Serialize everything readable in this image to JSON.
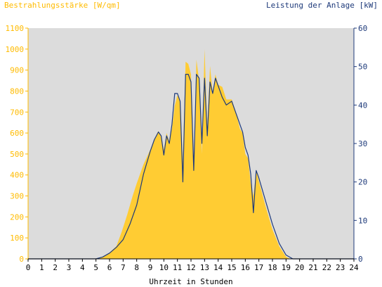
{
  "chart_data": {
    "type": "area",
    "left_axis_title": "Bestrahlungsstärke [W/qm]",
    "right_axis_title": "Leistung der Anlage [kW]",
    "xlabel": "Uhrzeit in Stunden",
    "xlim": [
      0,
      24
    ],
    "ylim_left": [
      0,
      1100
    ],
    "ylim_right": [
      0,
      60
    ],
    "x_ticks": [
      "0",
      "1",
      "2",
      "3",
      "4",
      "5",
      "6",
      "7",
      "8",
      "9",
      "10",
      "11",
      "12",
      "13",
      "14",
      "15",
      "16",
      "17",
      "18",
      "19",
      "20",
      "21",
      "22",
      "23",
      "24"
    ],
    "y_left_ticks": [
      "0",
      "100",
      "200",
      "300",
      "400",
      "500",
      "600",
      "700",
      "800",
      "900",
      "1000",
      "1100"
    ],
    "y_right_ticks": [
      "0",
      "10",
      "20",
      "30",
      "40",
      "50",
      "60"
    ],
    "grid": false,
    "colors": {
      "irradiance": "#ffcc33",
      "power": "#1e3a7a",
      "plot_bg": "#dcdcdc",
      "left_axis_text": "#ffbb00",
      "right_axis_text": "#1e3a7a"
    },
    "series": [
      {
        "name": "Bestrahlungsstärke",
        "axis": "left",
        "x": [
          5.2,
          5.5,
          6.0,
          6.5,
          6.9,
          7.3,
          7.7,
          8.0,
          8.5,
          9.0,
          9.3,
          9.6,
          9.8,
          10.0,
          10.2,
          10.4,
          10.6,
          10.8,
          11.0,
          11.2,
          11.4,
          11.6,
          11.8,
          12.0,
          12.2,
          12.4,
          12.6,
          12.8,
          13.0,
          13.2,
          13.4,
          13.6,
          13.8,
          14.0,
          14.3,
          14.6,
          15.0,
          15.3,
          15.6,
          15.8,
          16.0,
          16.2,
          16.4,
          16.6,
          16.8,
          17.0,
          17.5,
          18.0,
          18.5,
          19.0,
          19.3
        ],
        "values": [
          0,
          10,
          30,
          60,
          130,
          210,
          300,
          360,
          450,
          520,
          570,
          610,
          580,
          520,
          600,
          560,
          620,
          730,
          780,
          750,
          460,
          940,
          930,
          880,
          420,
          950,
          850,
          500,
          1000,
          630,
          920,
          790,
          880,
          830,
          820,
          760,
          760,
          700,
          620,
          600,
          500,
          480,
          360,
          300,
          420,
          370,
          250,
          140,
          60,
          10,
          0
        ]
      },
      {
        "name": "Leistung",
        "axis": "right",
        "x": [
          0,
          5.0,
          5.5,
          6.0,
          6.5,
          7.0,
          7.5,
          8.0,
          8.5,
          9.0,
          9.3,
          9.6,
          9.8,
          10.0,
          10.2,
          10.4,
          10.6,
          10.8,
          11.0,
          11.2,
          11.4,
          11.6,
          11.8,
          12.0,
          12.2,
          12.4,
          12.6,
          12.8,
          13.0,
          13.2,
          13.4,
          13.6,
          13.8,
          14.0,
          14.3,
          14.6,
          15.0,
          15.3,
          15.6,
          15.8,
          16.0,
          16.2,
          16.4,
          16.6,
          16.8,
          17.0,
          17.5,
          18.0,
          18.5,
          19.0,
          19.5,
          20.0,
          24
        ],
        "values": [
          0,
          0,
          0.5,
          1.5,
          3,
          5,
          9,
          14,
          22,
          28,
          31,
          33,
          32,
          27,
          32,
          30,
          35,
          43,
          43,
          41,
          20,
          48,
          48,
          46,
          23,
          48,
          47,
          30,
          47,
          32,
          46,
          43,
          47,
          45,
          42,
          40,
          41,
          38,
          35,
          33,
          29,
          27,
          22,
          12,
          23,
          21,
          15,
          9,
          4,
          1,
          0,
          0,
          0
        ]
      }
    ]
  }
}
